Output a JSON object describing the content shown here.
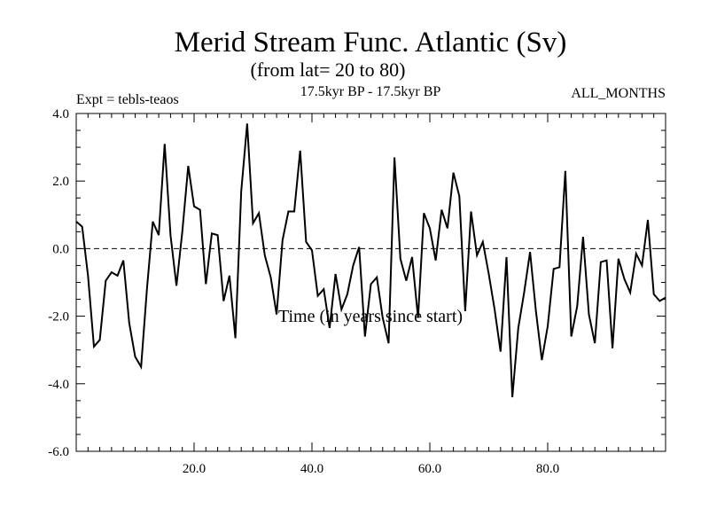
{
  "chart_data": {
    "type": "line",
    "title": "Merid Stream Func. Atlantic (Sv)",
    "subtitle": "(from lat= 20 to 80)",
    "expt_label": "Expt = tebls-teaos",
    "period_label": "17.5kyr BP - 17.5kyr BP",
    "months_label": "ALL_MONTHS",
    "xlabel": "Time (in years since start)",
    "ylabel": "",
    "xlim": [
      0,
      100
    ],
    "ylim": [
      -6,
      4
    ],
    "xticks": [
      20,
      40,
      60,
      80
    ],
    "xtick_labels": [
      "20.0",
      "40.0",
      "60.0",
      "80.0"
    ],
    "yticks": [
      -6,
      -4,
      -2,
      0,
      2,
      4
    ],
    "ytick_labels": [
      "-6.0",
      "-4.0",
      "-2.0",
      "0.0",
      "2.0",
      "4.0"
    ],
    "reference_line": 0,
    "series": [
      {
        "name": "Merid Stream Func.",
        "x": [
          0,
          1,
          2,
          3,
          4,
          5,
          6,
          7,
          8,
          9,
          10,
          11,
          12,
          13,
          14,
          15,
          16,
          17,
          18,
          19,
          20,
          21,
          22,
          23,
          24,
          25,
          26,
          27,
          28,
          29,
          30,
          31,
          32,
          33,
          34,
          35,
          36,
          37,
          38,
          39,
          40,
          41,
          42,
          43,
          44,
          45,
          46,
          47,
          48,
          49,
          50,
          51,
          52,
          53,
          54,
          55,
          56,
          57,
          58,
          59,
          60,
          61,
          62,
          63,
          64,
          65,
          66,
          67,
          68,
          69,
          70,
          71,
          72,
          73,
          74,
          75,
          76,
          77,
          78,
          79,
          80,
          81,
          82,
          83,
          84,
          85,
          86,
          87,
          88,
          89,
          90,
          91,
          92,
          93,
          94,
          95,
          96,
          97,
          98,
          99,
          100
        ],
        "values": [
          0.8,
          0.65,
          -0.8,
          -2.9,
          -2.7,
          -0.95,
          -0.7,
          -0.8,
          -0.35,
          -2.2,
          -3.2,
          -3.5,
          -1.2,
          0.8,
          0.4,
          3.1,
          0.4,
          -1.1,
          0.5,
          2.45,
          1.25,
          1.15,
          -1.05,
          0.45,
          0.4,
          -1.55,
          -0.8,
          -2.65,
          1.7,
          3.7,
          0.75,
          1.05,
          -0.2,
          -0.85,
          -1.95,
          0.25,
          1.1,
          1.1,
          2.9,
          0.2,
          -0.05,
          -1.4,
          -1.2,
          -2.35,
          -0.75,
          -1.8,
          -1.35,
          -0.5,
          0.05,
          -2.6,
          -1.05,
          -0.85,
          -2.05,
          -2.8,
          2.7,
          -0.3,
          -0.95,
          -0.25,
          -2.05,
          1.05,
          0.6,
          -0.35,
          1.15,
          0.6,
          2.25,
          1.55,
          -1.85,
          1.1,
          -0.2,
          0.2,
          -0.75,
          -1.8,
          -3.05,
          -0.25,
          -4.4,
          -2.35,
          -1.3,
          -0.1,
          -1.85,
          -3.3,
          -2.3,
          -0.6,
          -0.55,
          2.3,
          -2.6,
          -1.7,
          0.35,
          -1.95,
          -2.8,
          -0.4,
          -0.35,
          -2.95,
          -0.3,
          -0.9,
          -1.3,
          -0.15,
          -0.5,
          0.85,
          -1.35,
          -1.55,
          -1.45
        ]
      }
    ]
  }
}
